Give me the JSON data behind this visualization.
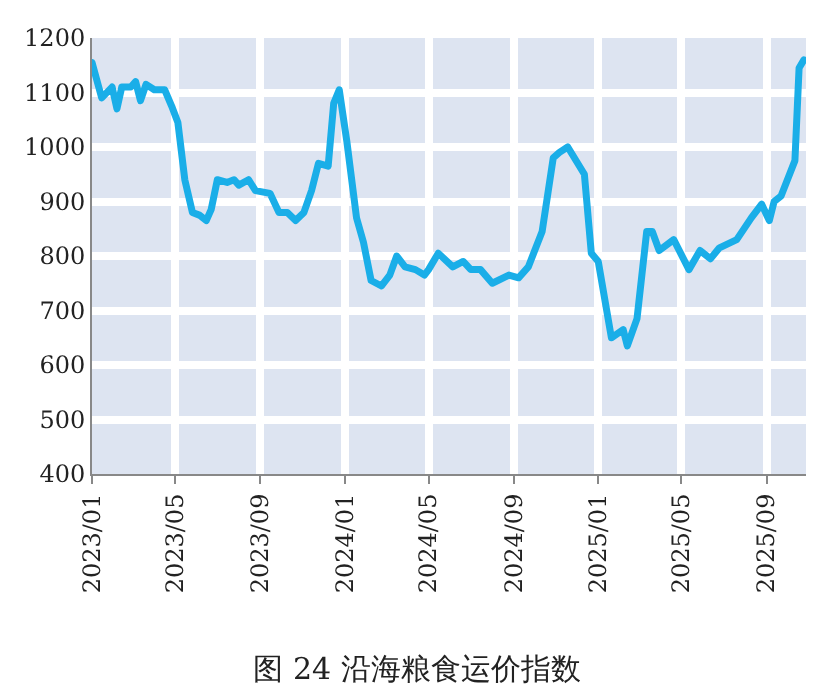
{
  "chart_data": {
    "type": "line",
    "title": "图 24 沿海粮食运价指数",
    "x": [
      "2023-01-01",
      "2023-01-15",
      "2023-01-30",
      "2023-02-06",
      "2023-02-13",
      "2023-02-26",
      "2023-03-05",
      "2023-03-12",
      "2023-03-20",
      "2023-04-01",
      "2023-04-16",
      "2023-04-26",
      "2023-05-05",
      "2023-05-15",
      "2023-05-26",
      "2023-06-05",
      "2023-06-15",
      "2023-06-22",
      "2023-07-01",
      "2023-07-15",
      "2023-07-25",
      "2023-08-01",
      "2023-08-15",
      "2023-08-25",
      "2023-09-15",
      "2023-09-28",
      "2023-10-10",
      "2023-10-22",
      "2023-11-03",
      "2023-11-14",
      "2023-11-24",
      "2023-12-08",
      "2023-12-16",
      "2023-12-24",
      "2024-01-04",
      "2024-01-18",
      "2024-01-28",
      "2024-02-08",
      "2024-02-23",
      "2024-03-06",
      "2024-03-16",
      "2024-03-28",
      "2024-04-12",
      "2024-04-25",
      "2024-05-01",
      "2024-05-15",
      "2024-06-05",
      "2024-06-20",
      "2024-07-01",
      "2024-07-15",
      "2024-08-01",
      "2024-08-25",
      "2024-09-08",
      "2024-09-22",
      "2024-10-12",
      "2024-10-28",
      "2024-11-06",
      "2024-11-18",
      "2024-12-12",
      "2024-12-22",
      "2025-01-01",
      "2025-01-20",
      "2025-02-06",
      "2025-02-12",
      "2025-02-26",
      "2025-03-12",
      "2025-03-20",
      "2025-03-30",
      "2025-04-20",
      "2025-05-12",
      "2025-05-28",
      "2025-06-12",
      "2025-06-25",
      "2025-07-20",
      "2025-08-10",
      "2025-08-25",
      "2025-09-05",
      "2025-09-12",
      "2025-09-22",
      "2025-10-12",
      "2025-10-18",
      "2025-10-25"
    ],
    "series": [
      {
        "color": "#1aaee8",
        "values": [
          1155,
          1090,
          1110,
          1070,
          1110,
          1110,
          1120,
          1085,
          1115,
          1105,
          1105,
          1075,
          1045,
          940,
          880,
          875,
          865,
          885,
          940,
          935,
          940,
          930,
          940,
          920,
          915,
          880,
          880,
          865,
          880,
          920,
          970,
          965,
          1080,
          1105,
          1010,
          870,
          825,
          755,
          745,
          765,
          800,
          780,
          775,
          765,
          775,
          805,
          780,
          790,
          775,
          775,
          750,
          765,
          760,
          780,
          845,
          980,
          990,
          1000,
          950,
          805,
          790,
          650,
          665,
          635,
          685,
          845,
          845,
          810,
          830,
          775,
          810,
          795,
          815,
          830,
          870,
          895,
          865,
          900,
          910,
          975,
          1145,
          1160
        ]
      }
    ],
    "xlim": [
      "2023-01-01",
      "2025-10-28"
    ],
    "xticks": [
      {
        "value": "2023-01-01",
        "label": "2023/01"
      },
      {
        "value": "2023-05-01",
        "label": "2023/05"
      },
      {
        "value": "2023-09-01",
        "label": "2023/09"
      },
      {
        "value": "2024-01-01",
        "label": "2024/01"
      },
      {
        "value": "2024-05-01",
        "label": "2024/05"
      },
      {
        "value": "2024-09-01",
        "label": "2024/09"
      },
      {
        "value": "2025-01-01",
        "label": "2025/01"
      },
      {
        "value": "2025-05-01",
        "label": "2025/05"
      },
      {
        "value": "2025-09-01",
        "label": "2025/09"
      }
    ],
    "ylim": [
      400,
      1200
    ],
    "yticks": [
      400,
      500,
      600,
      700,
      800,
      900,
      1000,
      1100,
      1200
    ],
    "grid": true,
    "legend": false,
    "line_style": "solid",
    "marker": "none"
  }
}
